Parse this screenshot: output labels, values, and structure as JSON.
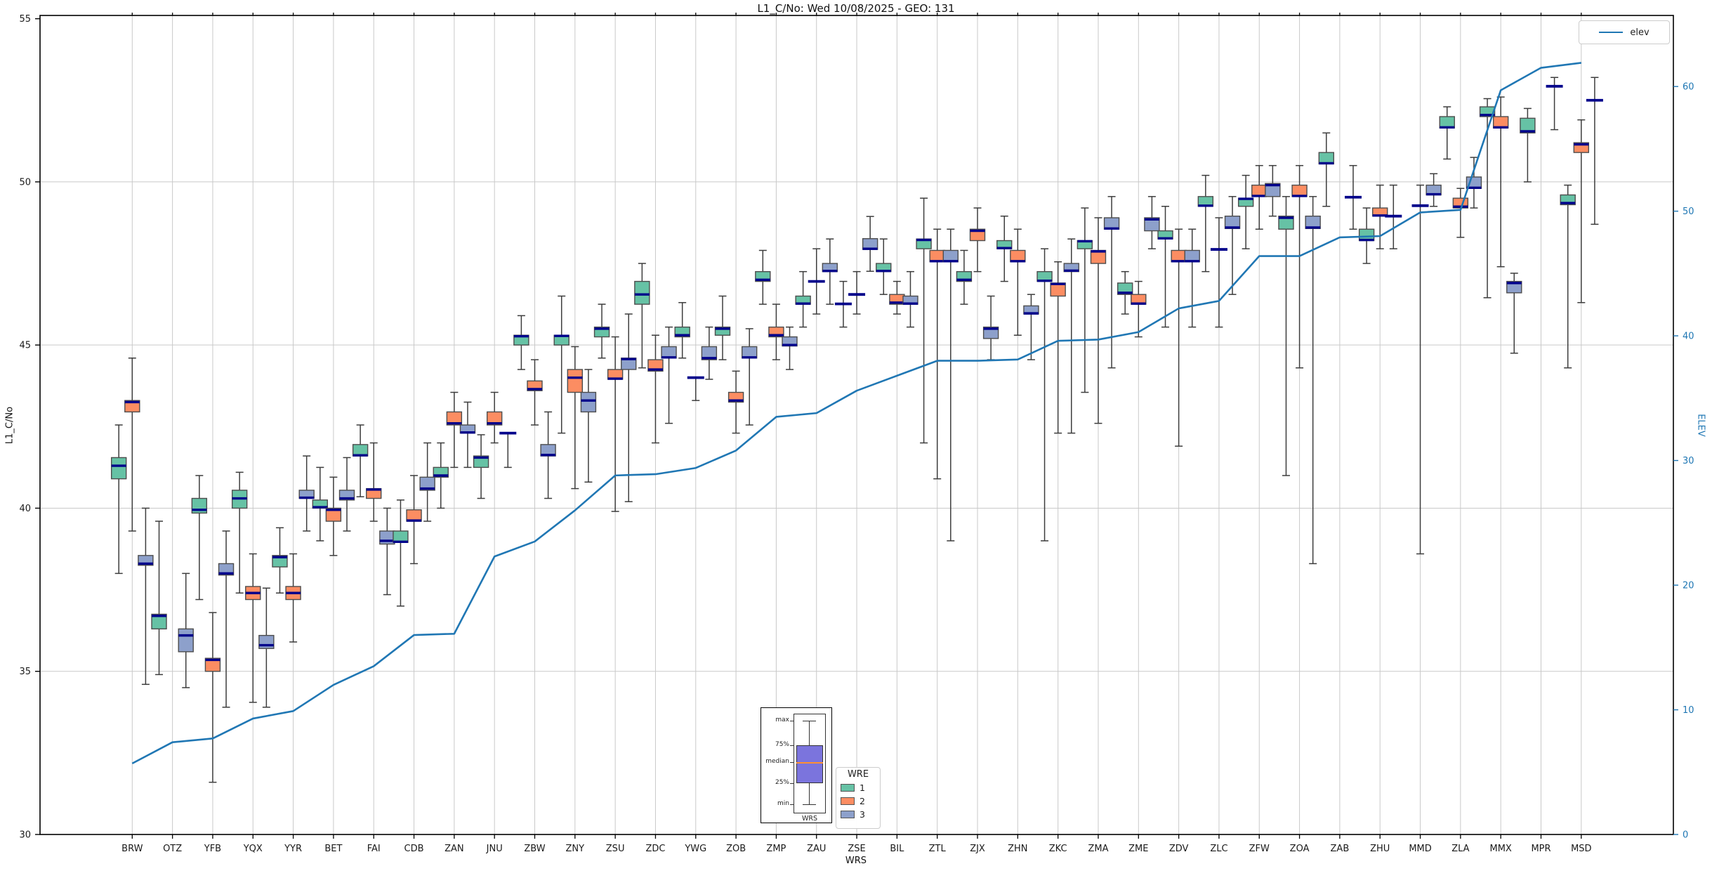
{
  "title": "L1_C/No: Wed 10/08/2025 - GEO: 131",
  "chart_data": {
    "type": "boxplot+line",
    "title": "L1_C/No: Wed 10/08/2025 - GEO: 131",
    "xlabel": "WRS",
    "ylabel_left": "L1_C/No",
    "ylabel_right": "ELEV",
    "grid": true,
    "ylim_left": [
      30,
      55.1
    ],
    "ylim_right": [
      0,
      65.7
    ],
    "y_left_ticks": [
      55,
      50,
      45,
      40,
      35,
      30
    ],
    "y_right_ticks": [
      60,
      50,
      40,
      30,
      20,
      10,
      0
    ],
    "categories": [
      "BRW",
      "OTZ",
      "YFB",
      "YQX",
      "YYR",
      "BET",
      "FAI",
      "CDB",
      "ZAN",
      "JNU",
      "ZBW",
      "ZNY",
      "ZSU",
      "ZDC",
      "YWG",
      "ZOB",
      "ZMP",
      "ZAU",
      "ZSE",
      "BIL",
      "ZTL",
      "ZJX",
      "ZHN",
      "ZKC",
      "ZMA",
      "ZME",
      "ZDV",
      "ZLC",
      "ZFW",
      "ZOA",
      "ZAB",
      "ZHU",
      "MMD",
      "ZLA",
      "MMX",
      "MPR",
      "MSD"
    ],
    "series_legend": {
      "title": "WRE",
      "entries": [
        {
          "label": "1",
          "color": "#66c2a5"
        },
        {
          "label": "2",
          "color": "#fc8d62"
        },
        {
          "label": "3",
          "color": "#8da0cb"
        }
      ]
    },
    "median_color": "#00008b",
    "box_series": [
      {
        "station": "BRW",
        "wre1": [
          38.0,
          40.9,
          41.3,
          41.55,
          42.55
        ],
        "wre2": [
          39.3,
          42.95,
          43.25,
          43.3,
          44.6
        ],
        "wre3": [
          34.6,
          38.25,
          38.3,
          38.55,
          40.0
        ]
      },
      {
        "station": "OTZ",
        "wre1": [
          34.9,
          36.3,
          36.7,
          36.75,
          39.6
        ],
        "wre2": null,
        "wre3": [
          34.5,
          35.6,
          36.1,
          36.3,
          38.0
        ]
      },
      {
        "station": "YFB",
        "wre1": [
          37.2,
          39.85,
          39.95,
          40.3,
          41.0
        ],
        "wre2": [
          31.6,
          35.0,
          35.35,
          35.4,
          36.8
        ],
        "wre3": [
          33.9,
          37.95,
          38.0,
          38.3,
          39.3
        ]
      },
      {
        "station": "YQX",
        "wre1": [
          37.4,
          40.0,
          40.3,
          40.55,
          41.1
        ],
        "wre2": [
          34.05,
          37.2,
          37.4,
          37.6,
          38.6
        ],
        "wre3": [
          33.9,
          35.7,
          35.8,
          36.1,
          37.55
        ]
      },
      {
        "station": "YYR",
        "wre1": [
          37.4,
          38.2,
          38.5,
          38.55,
          39.4
        ],
        "wre2": [
          35.9,
          37.2,
          37.4,
          37.6,
          38.6
        ],
        "wre3": [
          39.3,
          40.3,
          40.32,
          40.55,
          41.6
        ]
      },
      {
        "station": "BET",
        "wre1": [
          39.0,
          40.0,
          40.03,
          40.25,
          41.25
        ],
        "wre2": [
          38.55,
          39.6,
          39.95,
          40.0,
          40.95
        ],
        "wre3": [
          39.3,
          40.25,
          40.3,
          40.55,
          41.55
        ]
      },
      {
        "station": "FAI",
        "wre1": [
          40.35,
          41.6,
          41.62,
          41.95,
          42.55
        ],
        "wre2": [
          39.6,
          40.3,
          40.57,
          40.6,
          42.0
        ],
        "wre3": [
          37.35,
          38.9,
          39.0,
          39.3,
          40.0
        ]
      },
      {
        "station": "CDB",
        "wre1": [
          37.0,
          38.95,
          38.97,
          39.3,
          40.25
        ],
        "wre2": [
          38.3,
          39.6,
          39.62,
          39.95,
          41.0
        ],
        "wre3": [
          39.6,
          40.55,
          40.6,
          40.95,
          42.0
        ]
      },
      {
        "station": "ZAN",
        "wre1": [
          40.0,
          40.95,
          41.0,
          41.25,
          42.0
        ],
        "wre2": [
          41.25,
          42.55,
          42.6,
          42.95,
          43.55
        ],
        "wre3": [
          41.25,
          42.3,
          42.32,
          42.55,
          43.25
        ]
      },
      {
        "station": "JNU",
        "wre1": [
          40.3,
          41.25,
          41.55,
          41.6,
          42.25
        ],
        "wre2": [
          42.0,
          42.55,
          42.6,
          42.95,
          43.55
        ],
        "wre3": [
          41.25,
          42.3,
          42.3,
          42.3,
          42.3
        ]
      },
      {
        "station": "ZBW",
        "wre1": [
          44.25,
          45.0,
          45.27,
          45.3,
          45.9
        ],
        "wre2": [
          42.55,
          43.6,
          43.65,
          43.9,
          44.55
        ],
        "wre3": [
          40.3,
          41.6,
          41.63,
          41.95,
          42.95
        ]
      },
      {
        "station": "ZNY",
        "wre1": [
          42.3,
          45.0,
          45.28,
          45.3,
          46.5
        ],
        "wre2": [
          40.6,
          43.55,
          44.0,
          44.25,
          44.95
        ],
        "wre3": [
          40.8,
          42.95,
          43.3,
          43.55,
          44.25
        ]
      },
      {
        "station": "ZSU",
        "wre1": [
          44.6,
          45.25,
          45.5,
          45.55,
          46.25
        ],
        "wre2": [
          39.9,
          43.95,
          43.97,
          44.25,
          45.25
        ],
        "wre3": [
          40.2,
          44.25,
          44.57,
          44.6,
          45.95
        ]
      },
      {
        "station": "ZDC",
        "wre1": [
          44.3,
          46.25,
          46.55,
          46.95,
          47.5
        ],
        "wre2": [
          42.0,
          44.2,
          44.25,
          44.55,
          45.3
        ],
        "wre3": [
          42.6,
          44.6,
          44.62,
          44.95,
          45.55
        ]
      },
      {
        "station": "YWG",
        "wre1": [
          44.6,
          45.25,
          45.3,
          45.55,
          46.3
        ],
        "wre2": [
          43.3,
          44.0,
          44.0,
          44.0,
          44.0
        ],
        "wre3": [
          43.95,
          44.55,
          44.6,
          44.95,
          45.55
        ]
      },
      {
        "station": "ZOB",
        "wre1": [
          44.55,
          45.3,
          45.5,
          45.55,
          46.5
        ],
        "wre2": [
          42.3,
          43.25,
          43.3,
          43.55,
          44.2
        ],
        "wre3": [
          42.55,
          44.6,
          44.62,
          44.95,
          45.5
        ]
      },
      {
        "station": "ZMP",
        "wre1": [
          46.25,
          46.95,
          47.0,
          47.25,
          47.9
        ],
        "wre2": [
          44.55,
          45.25,
          45.3,
          45.55,
          46.25
        ],
        "wre3": [
          44.25,
          44.97,
          45.0,
          45.25,
          45.55
        ]
      },
      {
        "station": "ZAU",
        "wre1": [
          45.55,
          46.25,
          46.27,
          46.5,
          47.25
        ],
        "wre2": [
          45.95,
          46.95,
          46.95,
          46.95,
          47.95
        ],
        "wre3": [
          46.25,
          47.25,
          47.27,
          47.5,
          48.25
        ]
      },
      {
        "station": "ZSE",
        "wre1": [
          45.55,
          46.26,
          46.26,
          46.26,
          46.95
        ],
        "wre2": [
          45.95,
          46.55,
          46.55,
          46.55,
          47.25
        ],
        "wre3": [
          47.26,
          47.93,
          47.95,
          48.26,
          48.94
        ]
      },
      {
        "station": "BIL",
        "wre1": [
          46.55,
          47.25,
          47.27,
          47.5,
          48.25
        ],
        "wre2": [
          45.95,
          46.25,
          46.3,
          46.55,
          46.95
        ],
        "wre3": [
          45.55,
          46.25,
          46.27,
          46.5,
          47.25
        ]
      },
      {
        "station": "ZTL",
        "wre1": [
          42.0,
          47.95,
          48.22,
          48.25,
          49.5
        ],
        "wre2": [
          40.9,
          47.55,
          47.57,
          47.9,
          48.55
        ],
        "wre3": [
          39.0,
          47.55,
          47.57,
          47.9,
          48.55
        ]
      },
      {
        "station": "ZJX",
        "wre1": [
          46.25,
          46.95,
          47.0,
          47.25,
          47.9
        ],
        "wre2": [
          47.25,
          48.2,
          48.5,
          48.55,
          49.2
        ],
        "wre3": [
          44.55,
          45.2,
          45.5,
          45.55,
          46.5
        ]
      },
      {
        "station": "ZHN",
        "wre1": [
          46.95,
          47.95,
          47.97,
          48.2,
          48.95
        ],
        "wre2": [
          45.3,
          47.55,
          47.57,
          47.9,
          48.55
        ],
        "wre3": [
          44.55,
          45.95,
          45.97,
          46.2,
          46.55
        ]
      },
      {
        "station": "ZKC",
        "wre1": [
          39.0,
          46.95,
          46.97,
          47.25,
          47.95
        ],
        "wre2": [
          42.3,
          46.5,
          46.87,
          46.9,
          47.55
        ],
        "wre3": [
          42.3,
          47.25,
          47.28,
          47.5,
          48.25
        ]
      },
      {
        "station": "ZMA",
        "wre1": [
          43.55,
          47.95,
          48.18,
          48.2,
          49.2
        ],
        "wre2": [
          42.6,
          47.5,
          47.87,
          47.9,
          48.9
        ],
        "wre3": [
          44.3,
          48.55,
          48.57,
          48.9,
          49.55
        ]
      },
      {
        "station": "ZME",
        "wre1": [
          45.95,
          46.55,
          46.6,
          46.9,
          47.25
        ],
        "wre2": [
          45.25,
          46.25,
          46.27,
          46.55,
          46.95
        ],
        "wre3": [
          47.95,
          48.5,
          48.85,
          48.9,
          49.55
        ]
      },
      {
        "station": "ZDV",
        "wre1": [
          45.55,
          48.25,
          48.27,
          48.5,
          49.25
        ],
        "wre2": [
          41.9,
          47.55,
          47.57,
          47.9,
          48.55
        ],
        "wre3": [
          45.55,
          47.55,
          47.57,
          47.9,
          48.55
        ]
      },
      {
        "station": "ZLC",
        "wre1": [
          47.25,
          49.25,
          49.27,
          49.55,
          50.2
        ],
        "wre2": [
          45.55,
          47.93,
          47.93,
          47.93,
          48.9
        ],
        "wre3": [
          46.55,
          48.57,
          48.6,
          48.95,
          49.55
        ]
      },
      {
        "station": "ZFW",
        "wre1": [
          47.95,
          49.25,
          49.48,
          49.5,
          50.2
        ],
        "wre2": [
          48.55,
          49.55,
          49.57,
          49.9,
          50.5
        ],
        "wre3": [
          48.95,
          49.55,
          49.9,
          49.95,
          50.5
        ]
      },
      {
        "station": "ZOA",
        "wre1": [
          41.0,
          48.55,
          48.9,
          48.95,
          49.55
        ],
        "wre2": [
          44.3,
          49.55,
          49.57,
          49.9,
          50.5
        ],
        "wre3": [
          38.3,
          48.57,
          48.6,
          48.95,
          49.55
        ]
      },
      {
        "station": "ZAB",
        "wre1": [
          49.25,
          50.55,
          50.57,
          50.9,
          51.5
        ],
        "wre2": null,
        "wre3": [
          48.55,
          49.53,
          49.53,
          49.53,
          50.5
        ]
      },
      {
        "station": "ZHU",
        "wre1": [
          47.5,
          48.2,
          48.22,
          48.55,
          49.2
        ],
        "wre2": [
          47.95,
          48.95,
          48.97,
          49.2,
          49.9
        ],
        "wre3": [
          47.95,
          48.95,
          48.95,
          48.95,
          49.9
        ]
      },
      {
        "station": "MMD",
        "wre1": null,
        "wre2": [
          38.6,
          49.27,
          49.27,
          49.27,
          49.9
        ],
        "wre3": [
          49.25,
          49.6,
          49.62,
          49.9,
          50.25
        ]
      },
      {
        "station": "ZLA",
        "wre1": [
          50.7,
          51.65,
          51.67,
          52.0,
          52.3
        ],
        "wre2": [
          48.3,
          49.2,
          49.24,
          49.5,
          49.8
        ],
        "wre3": [
          49.2,
          49.8,
          49.82,
          50.15,
          50.75
        ]
      },
      {
        "station": "MMX",
        "wre1": [
          46.45,
          52.0,
          52.05,
          52.3,
          52.55
        ],
        "wre2": [
          47.4,
          51.65,
          51.67,
          52.0,
          52.6
        ],
        "wre3": [
          44.75,
          46.6,
          46.9,
          46.95,
          47.2
        ]
      },
      {
        "station": "MPR",
        "wre1": [
          50.0,
          51.5,
          51.55,
          51.95,
          52.25
        ],
        "wre2": null,
        "wre3": [
          51.6,
          52.93,
          52.93,
          52.93,
          53.2
        ]
      },
      {
        "station": "MSD",
        "wre1": [
          44.3,
          49.3,
          49.35,
          49.6,
          49.9
        ],
        "wre2": [
          46.3,
          50.9,
          51.15,
          51.2,
          51.9
        ],
        "wre3": [
          48.7,
          52.5,
          52.5,
          52.5,
          53.2
        ]
      }
    ],
    "elev_line": {
      "label": "elev",
      "color": "#2077b4",
      "values": [
        5.7,
        7.4,
        7.7,
        9.3,
        9.9,
        12.0,
        13.5,
        16.0,
        16.1,
        22.3,
        23.5,
        26.0,
        28.8,
        28.9,
        29.4,
        30.8,
        33.5,
        33.8,
        35.6,
        36.8,
        38.0,
        38.0,
        38.1,
        39.6,
        39.7,
        40.3,
        42.2,
        42.8,
        46.4,
        46.4,
        47.9,
        48.0,
        49.9,
        50.1,
        59.7,
        61.5,
        61.9
      ]
    },
    "inset": {
      "labels": [
        "max",
        "75%",
        "median",
        "25%",
        "min"
      ],
      "xlabel": "WRS",
      "box_color": "#7b74dd",
      "median_color": "#ff9030"
    }
  }
}
